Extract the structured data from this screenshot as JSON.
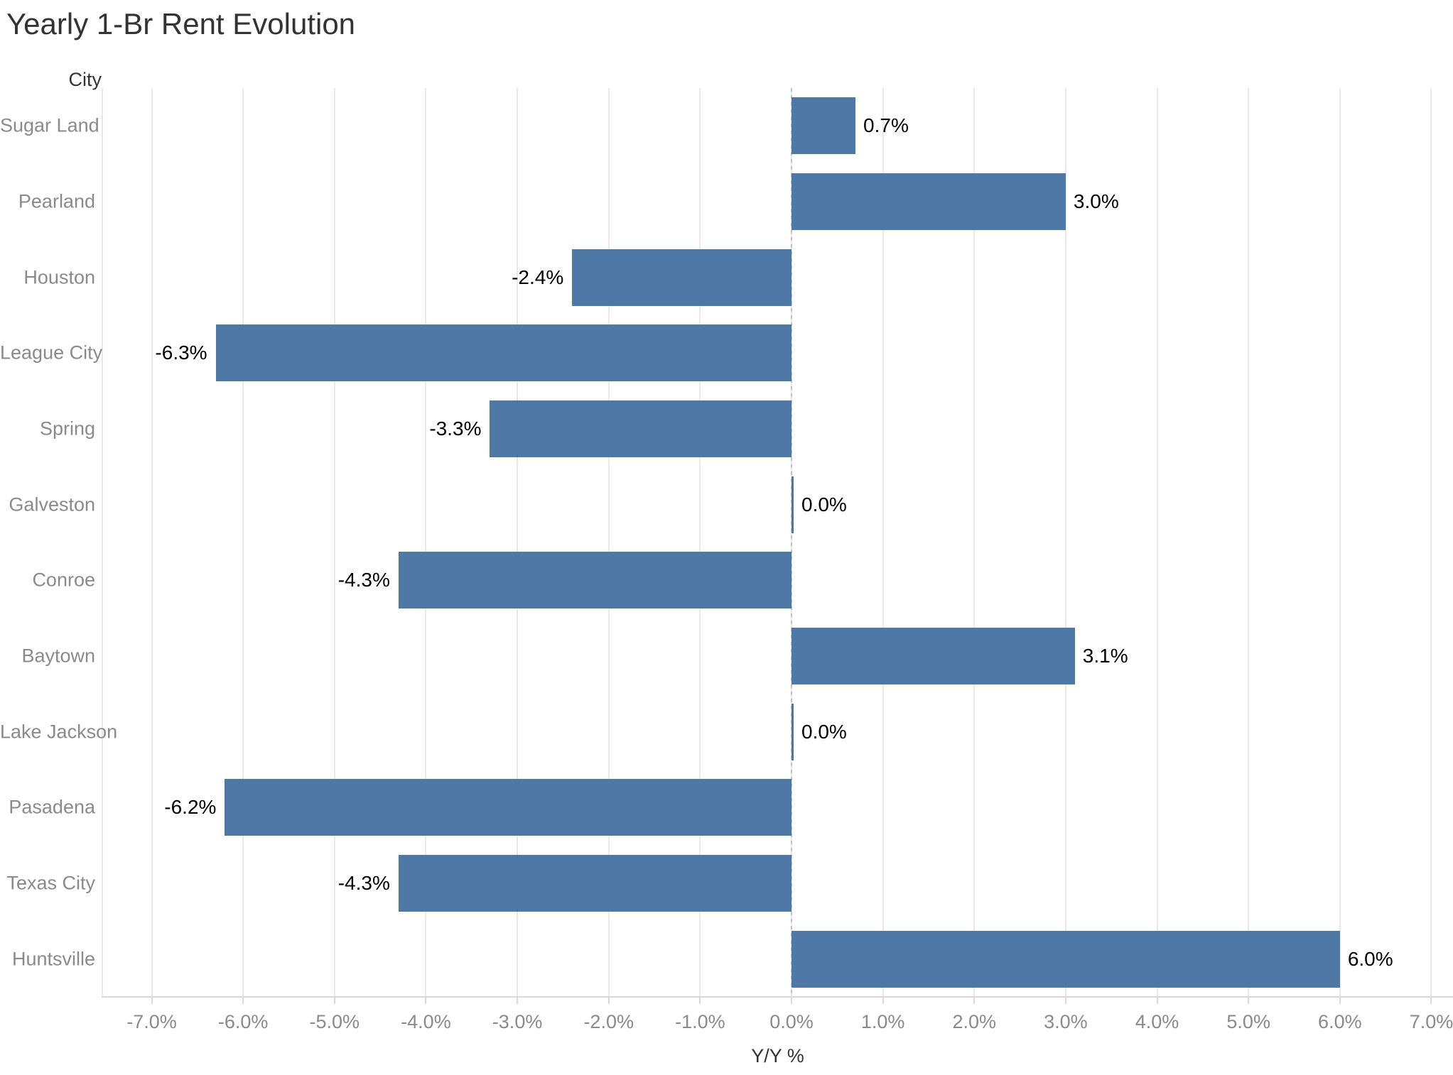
{
  "chart_data": {
    "type": "bar",
    "orientation": "horizontal",
    "title": "Yearly 1-Br Rent Evolution",
    "xlabel": "Y/Y %",
    "ylabel": "City",
    "categories": [
      "Sugar Land",
      "Pearland",
      "Houston",
      "League City",
      "Spring",
      "Galveston",
      "Conroe",
      "Baytown",
      "Lake Jackson",
      "Pasadena",
      "Texas City",
      "Huntsville"
    ],
    "values": [
      0.7,
      3.0,
      -2.4,
      -6.3,
      -3.3,
      0.0,
      -4.3,
      3.1,
      0.0,
      -6.2,
      -4.3,
      6.0
    ],
    "value_labels": [
      "0.7%",
      "3.0%",
      "-2.4%",
      "-6.3%",
      "-3.3%",
      "0.0%",
      "-4.3%",
      "3.1%",
      "0.0%",
      "-6.2%",
      "-4.3%",
      "6.0%"
    ],
    "x_ticks": [
      -7,
      -6,
      -5,
      -4,
      -3,
      -2,
      -1,
      0,
      1,
      2,
      3,
      4,
      5,
      6,
      7
    ],
    "x_tick_labels": [
      "-7.0%",
      "-6.0%",
      "-5.0%",
      "-4.0%",
      "-3.0%",
      "-2.0%",
      "-1.0%",
      "0.0%",
      "1.0%",
      "2.0%",
      "3.0%",
      "4.0%",
      "5.0%",
      "6.0%",
      "7.0%"
    ],
    "xlim": [
      -7.54,
      7.24
    ],
    "grid": true,
    "legend": false,
    "zero_line": "dashed",
    "bar_color": "#4e79a7",
    "colors": {
      "title_text": "#333333",
      "axis_text": "#8a8a8a",
      "value_text": "#000000",
      "gridline": "#e9e9e9",
      "axis_line": "#d8d8d8",
      "zero_line": "#c2c2c2"
    }
  }
}
